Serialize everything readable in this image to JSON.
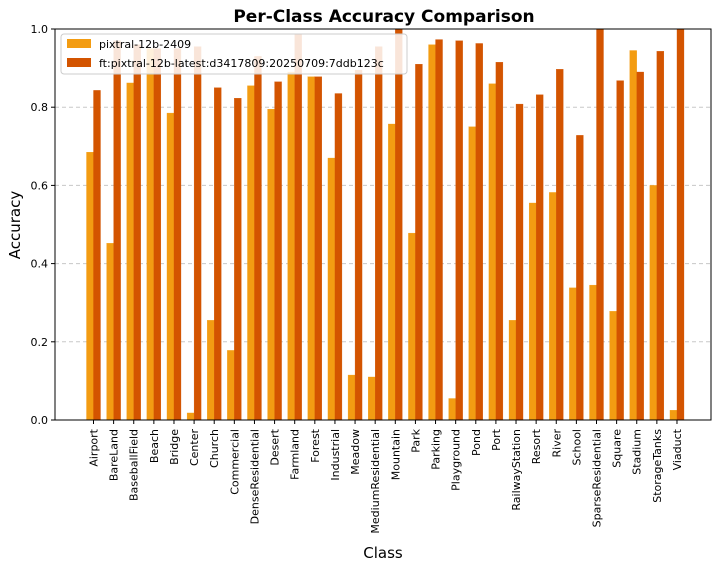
{
  "chart_data": {
    "type": "bar",
    "title": "Per-Class Accuracy Comparison",
    "xlabel": "Class",
    "ylabel": "Accuracy",
    "ylim": [
      0,
      1.0
    ],
    "yticks": [
      "0.0",
      "0.2",
      "0.4",
      "0.6",
      "0.8",
      "1.0"
    ],
    "grid": "y-dashed",
    "legend_position": "top-left",
    "categories": [
      "Airport",
      "BareLand",
      "BaseballField",
      "Beach",
      "Bridge",
      "Center",
      "Church",
      "Commercial",
      "DenseResidential",
      "Desert",
      "Farmland",
      "Forest",
      "Industrial",
      "Meadow",
      "MediumResidential",
      "Mountain",
      "Park",
      "Parking",
      "Playground",
      "Pond",
      "Port",
      "RailwayStation",
      "Resort",
      "River",
      "School",
      "SparseResidential",
      "Square",
      "Stadium",
      "StorageTanks",
      "Viaduct"
    ],
    "series": [
      {
        "name": "pixtral-12b-2409",
        "color": "#f39c12",
        "values": [
          0.685,
          0.452,
          0.862,
          0.95,
          0.785,
          0.018,
          0.255,
          0.178,
          0.855,
          0.795,
          0.89,
          0.878,
          0.67,
          0.115,
          0.11,
          0.757,
          0.478,
          0.96,
          0.055,
          0.75,
          0.86,
          0.255,
          0.555,
          0.582,
          0.338,
          0.345,
          0.278,
          0.945,
          0.6,
          0.025
        ]
      },
      {
        "name": "ft:pixtral-12b-latest:d3417809:20250709:7ddb123c",
        "color": "#d35400",
        "values": [
          0.843,
          0.97,
          0.96,
          0.95,
          0.95,
          0.955,
          0.85,
          0.823,
          0.93,
          0.865,
          0.988,
          0.878,
          0.835,
          0.895,
          0.955,
          1.0,
          0.91,
          0.973,
          0.97,
          0.963,
          0.915,
          0.808,
          0.832,
          0.897,
          0.728,
          1.0,
          0.868,
          0.89,
          0.943,
          1.0
        ]
      }
    ]
  }
}
